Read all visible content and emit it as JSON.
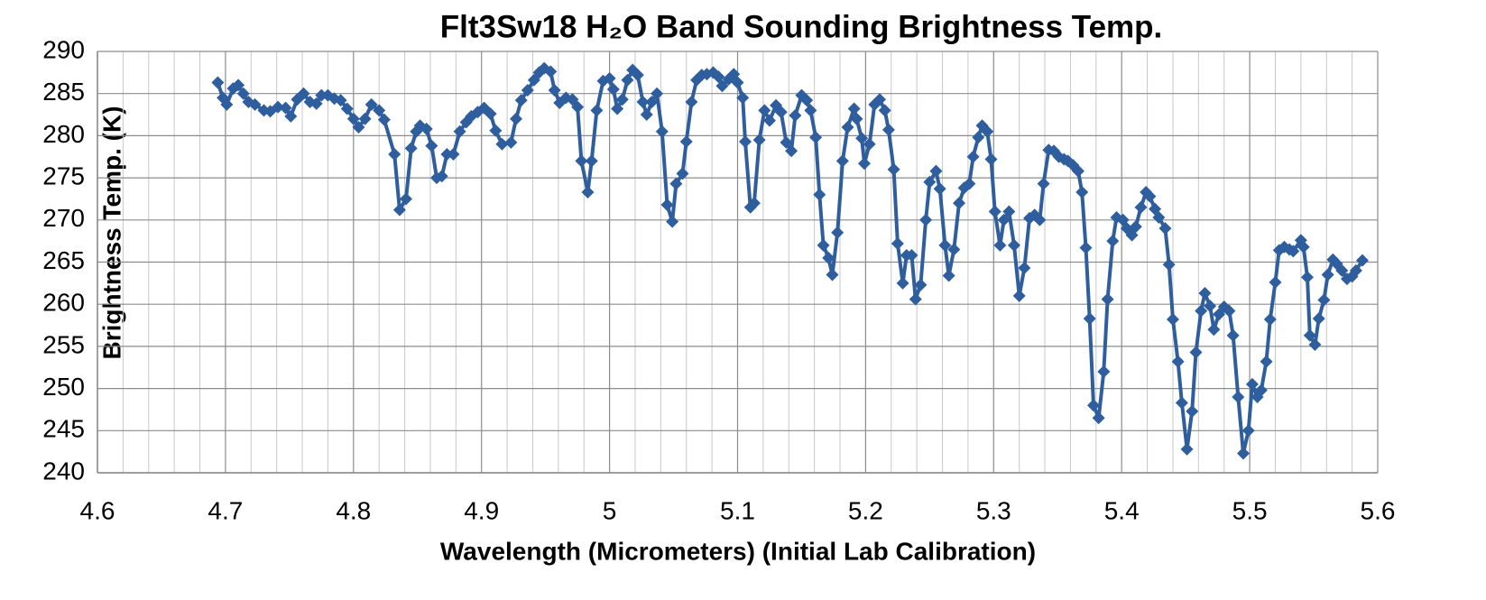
{
  "chart_data": {
    "type": "line",
    "title": "Flt3Sw18 H₂O Band Sounding Brightness Temp.",
    "xlabel": "Wavelength (Micrometers)  (Initial Lab Calibration)",
    "ylabel": "Brightness Temp. (K)",
    "xlim": [
      4.6,
      5.6
    ],
    "xticks": [
      4.6,
      4.7,
      4.8,
      4.9,
      5,
      5.1,
      5.2,
      5.3,
      5.4,
      5.5,
      5.6
    ],
    "xminorticks": [
      4.62,
      4.64,
      4.66,
      4.68,
      4.72,
      4.74,
      4.76,
      4.78,
      4.82,
      4.84,
      4.86,
      4.88,
      4.92,
      4.94,
      4.96,
      4.98,
      5.02,
      5.04,
      5.06,
      5.08,
      5.12,
      5.14,
      5.16,
      5.18,
      5.22,
      5.24,
      5.26,
      5.28,
      5.32,
      5.34,
      5.36,
      5.38,
      5.42,
      5.44,
      5.46,
      5.48,
      5.52,
      5.54,
      5.56,
      5.58
    ],
    "ylim": [
      240,
      290
    ],
    "yticks": [
      240,
      245,
      250,
      255,
      260,
      265,
      270,
      275,
      280,
      285,
      290
    ],
    "grid": true,
    "x": [
      4.694,
      4.698,
      4.701,
      4.706,
      4.71,
      4.714,
      4.718,
      4.723,
      4.73,
      4.735,
      4.741,
      4.747,
      4.751,
      4.756,
      4.761,
      4.766,
      4.771,
      4.775,
      4.78,
      4.785,
      4.79,
      4.795,
      4.8,
      4.804,
      4.809,
      4.814,
      4.82,
      4.824,
      4.832,
      4.836,
      4.841,
      4.845,
      4.849,
      4.852,
      4.857,
      4.861,
      4.865,
      4.869,
      4.873,
      4.878,
      4.883,
      4.888,
      4.892,
      4.897,
      4.902,
      4.907,
      4.911,
      4.916,
      4.923,
      4.927,
      4.931,
      4.936,
      4.941,
      4.945,
      4.949,
      4.954,
      4.957,
      4.961,
      4.966,
      4.971,
      4.975,
      4.978,
      4.983,
      4.986,
      4.99,
      4.995,
      5.0,
      5.003,
      5.006,
      5.01,
      5.014,
      5.018,
      5.022,
      5.026,
      5.029,
      5.033,
      5.037,
      5.041,
      5.045,
      5.049,
      5.052,
      5.057,
      5.06,
      5.064,
      5.068,
      5.072,
      5.076,
      5.081,
      5.085,
      5.088,
      5.093,
      5.097,
      5.1,
      5.104,
      5.106,
      5.11,
      5.113,
      5.117,
      5.121,
      5.125,
      5.13,
      5.134,
      5.138,
      5.142,
      5.145,
      5.15,
      5.154,
      5.157,
      5.161,
      5.164,
      5.167,
      5.171,
      5.174,
      5.178,
      5.182,
      5.186,
      5.191,
      5.193,
      5.197,
      5.199,
      5.203,
      5.207,
      5.211,
      5.215,
      5.218,
      5.222,
      5.225,
      5.229,
      5.232,
      5.236,
      5.239,
      5.243,
      5.247,
      5.25,
      5.255,
      5.258,
      5.262,
      5.265,
      5.269,
      5.273,
      5.277,
      5.281,
      5.284,
      5.288,
      5.291,
      5.295,
      5.298,
      5.301,
      5.305,
      5.308,
      5.312,
      5.316,
      5.32,
      5.324,
      5.328,
      5.332,
      5.336,
      5.339,
      5.343,
      5.347,
      5.351,
      5.355,
      5.358,
      5.362,
      5.366,
      5.369,
      5.372,
      5.375,
      5.378,
      5.382,
      5.386,
      5.389,
      5.393,
      5.396,
      5.401,
      5.404,
      5.408,
      5.411,
      5.415,
      5.419,
      5.422,
      5.426,
      5.429,
      5.434,
      5.437,
      5.44,
      5.444,
      5.447,
      5.451,
      5.455,
      5.458,
      5.462,
      5.465,
      5.469,
      5.472,
      5.476,
      5.48,
      5.484,
      5.487,
      5.491,
      5.495,
      5.499,
      5.502,
      5.506,
      5.509,
      5.513,
      5.516,
      5.52,
      5.523,
      5.527,
      5.531,
      5.534,
      5.54,
      5.542,
      5.545,
      5.547,
      5.551,
      5.554,
      5.558,
      5.561,
      5.565,
      5.568,
      5.572,
      5.576,
      5.58,
      5.583,
      5.588
    ],
    "series": [
      {
        "color": "#2f5e9f",
        "values": [
          286.3,
          284.5,
          283.7,
          285.6,
          286.0,
          285.0,
          284.0,
          283.7,
          283.0,
          282.9,
          283.4,
          283.3,
          282.3,
          284.3,
          285.0,
          284.0,
          283.8,
          284.8,
          284.8,
          284.4,
          284.2,
          283.2,
          282.0,
          281.0,
          282.0,
          283.7,
          283.0,
          281.9,
          277.8,
          271.2,
          272.5,
          278.5,
          280.5,
          281.2,
          280.8,
          278.8,
          275.0,
          275.2,
          277.8,
          277.8,
          280.5,
          281.6,
          282.3,
          282.8,
          283.3,
          282.6,
          280.6,
          279.0,
          279.2,
          282.0,
          284.2,
          285.4,
          286.6,
          287.5,
          288.0,
          287.6,
          285.4,
          283.9,
          284.5,
          284.3,
          283.4,
          277.0,
          273.3,
          277.0,
          283.0,
          286.5,
          286.8,
          285.5,
          283.2,
          284.3,
          286.6,
          287.8,
          287.2,
          284.0,
          282.5,
          284.0,
          285.0,
          280.5,
          271.8,
          269.8,
          274.3,
          275.5,
          279.3,
          284.0,
          286.6,
          287.2,
          287.3,
          287.5,
          287.0,
          285.9,
          286.7,
          287.3,
          286.3,
          284.5,
          279.3,
          271.5,
          272.0,
          279.5,
          283.0,
          281.8,
          283.6,
          282.8,
          279.2,
          278.2,
          282.4,
          284.8,
          284.2,
          283.0,
          279.8,
          273.0,
          267.0,
          265.5,
          263.5,
          268.5,
          277.0,
          281.0,
          283.2,
          282.0,
          279.7,
          276.7,
          279.0,
          283.7,
          284.3,
          283.0,
          280.7,
          276.0,
          267.2,
          262.5,
          265.8,
          265.8,
          260.6,
          262.3,
          270.0,
          274.5,
          275.8,
          273.7,
          267.0,
          263.4,
          266.5,
          272.0,
          273.8,
          274.3,
          277.5,
          279.8,
          281.2,
          280.5,
          277.2,
          271.0,
          267.0,
          270.0,
          271.0,
          267.0,
          261.0,
          264.3,
          270.2,
          270.6,
          270.0,
          274.3,
          278.3,
          278.2,
          277.5,
          277.2,
          277.0,
          276.5,
          275.8,
          273.3,
          266.7,
          258.3,
          248.0,
          246.5,
          252.0,
          260.6,
          267.5,
          270.3,
          270.0,
          269.0,
          268.2,
          269.2,
          271.5,
          273.3,
          272.8,
          271.3,
          270.3,
          269.0,
          264.7,
          258.2,
          253.2,
          248.3,
          242.8,
          247.3,
          254.3,
          259.2,
          261.3,
          259.8,
          257.0,
          258.8,
          259.7,
          259.2,
          256.3,
          249.0,
          242.3,
          245.0,
          250.5,
          249.0,
          249.8,
          253.2,
          258.2,
          262.6,
          266.4,
          266.8,
          266.5,
          266.3,
          267.6,
          266.8,
          263.2,
          256.3,
          255.2,
          258.3,
          260.5,
          263.5,
          265.3,
          264.8,
          264.0,
          263.0,
          263.3,
          264.0,
          265.2
        ]
      }
    ]
  }
}
